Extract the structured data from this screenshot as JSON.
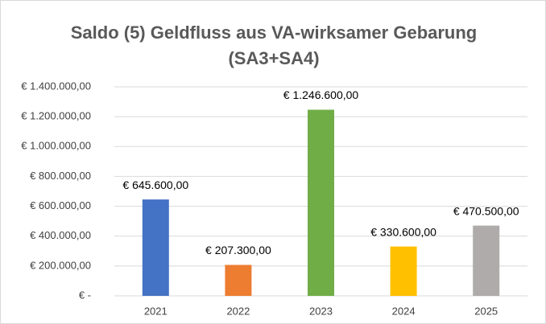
{
  "chart_data": {
    "type": "bar",
    "title": [
      "Saldo (5) Geldfluss aus VA-wirksamer Gebarung",
      "(SA3+SA4)"
    ],
    "categories": [
      "2021",
      "2022",
      "2023",
      "2024",
      "2025"
    ],
    "values": [
      645600,
      207300,
      1246600,
      330600,
      470500
    ],
    "value_labels": [
      "€ 645.600,00",
      "€ 207.300,00",
      "€ 1.246.600,00",
      "€ 330.600,00",
      "€ 470.500,00"
    ],
    "colors": [
      "#4472c4",
      "#ed7d31",
      "#70ad47",
      "#ffc000",
      "#afabab"
    ],
    "ylim": [
      0,
      1400000
    ],
    "yticks": [
      {
        "value": 0,
        "label": "€ -"
      },
      {
        "value": 200000,
        "label": "€ 200.000,00"
      },
      {
        "value": 400000,
        "label": "€ 400.000,00"
      },
      {
        "value": 600000,
        "label": "€ 600.000,00"
      },
      {
        "value": 800000,
        "label": "€ 800.000,00"
      },
      {
        "value": 1000000,
        "label": "€ 1.000.000,00"
      },
      {
        "value": 1200000,
        "label": "€ 1.200.000,00"
      },
      {
        "value": 1400000,
        "label": "€ 1.400.000,00"
      }
    ],
    "grid": true
  }
}
